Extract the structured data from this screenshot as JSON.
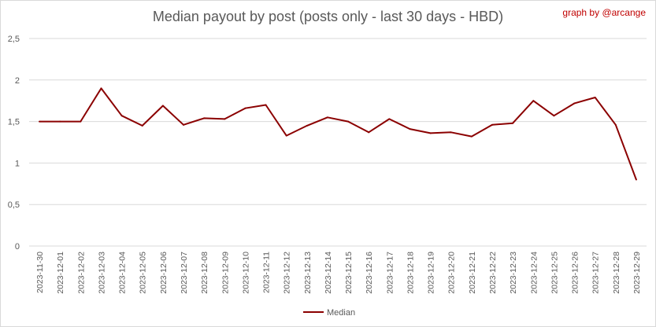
{
  "chart_data": {
    "type": "line",
    "title": "Median payout by post (posts only - last 30 days - HBD)",
    "credit": "graph by @arcange",
    "xlabel": "",
    "ylabel": "",
    "ylim": [
      0,
      2.5
    ],
    "y_ticks": [
      "0",
      "0,5",
      "1",
      "1,5",
      "2",
      "2,5"
    ],
    "y_tick_values": [
      0,
      0.5,
      1,
      1.5,
      2,
      2.5
    ],
    "grid": true,
    "legend_position": "bottom",
    "categories": [
      "2023-11-30",
      "2023-12-01",
      "2023-12-02",
      "2023-12-03",
      "2023-12-04",
      "2023-12-05",
      "2023-12-06",
      "2023-12-07",
      "2023-12-08",
      "2023-12-09",
      "2023-12-10",
      "2023-12-11",
      "2023-12-12",
      "2023-12-13",
      "2023-12-14",
      "2023-12-15",
      "2023-12-16",
      "2023-12-17",
      "2023-12-18",
      "2023-12-19",
      "2023-12-20",
      "2023-12-21",
      "2023-12-22",
      "2023-12-23",
      "2023-12-24",
      "2023-12-25",
      "2023-12-26",
      "2023-12-27",
      "2023-12-28",
      "2023-12-29"
    ],
    "series": [
      {
        "name": "Median",
        "color": "#8b0000",
        "values": [
          1.5,
          1.5,
          1.5,
          1.9,
          1.57,
          1.45,
          1.69,
          1.46,
          1.54,
          1.53,
          1.66,
          1.7,
          1.33,
          1.45,
          1.55,
          1.5,
          1.37,
          1.53,
          1.41,
          1.36,
          1.37,
          1.32,
          1.46,
          1.48,
          1.75,
          1.57,
          1.72,
          1.79,
          1.46,
          0.8
        ]
      }
    ]
  }
}
